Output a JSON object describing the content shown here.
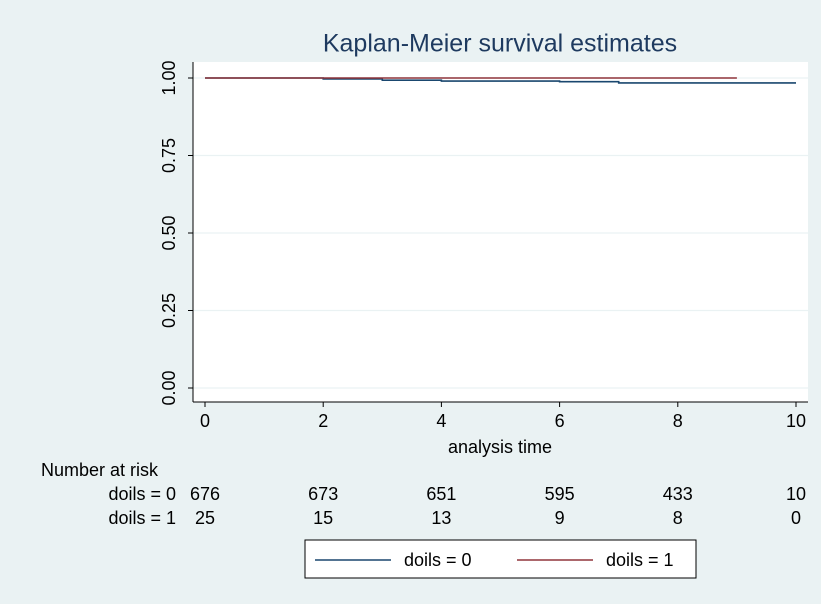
{
  "chart_data": {
    "type": "line",
    "step": true,
    "title": "Kaplan-Meier survival estimates",
    "x_label": "analysis time",
    "xlim": [
      0,
      10
    ],
    "xticks": [
      0,
      2,
      4,
      6,
      8,
      10
    ],
    "ylim": [
      0,
      1
    ],
    "yticks": [
      {
        "value": 0,
        "label": "0.00"
      },
      {
        "value": 0.25,
        "label": "0.25"
      },
      {
        "value": 0.5,
        "label": "0.50"
      },
      {
        "value": 0.75,
        "label": "0.75"
      },
      {
        "value": 1,
        "label": "1.00"
      }
    ],
    "grid": true,
    "series": [
      {
        "name": "doils = 0",
        "color": "#1a476f",
        "x": [
          0,
          2,
          3,
          4,
          6,
          7,
          10
        ],
        "values": [
          1,
          0.997,
          0.993,
          0.99,
          0.988,
          0.984,
          0.984
        ]
      },
      {
        "name": "doils = 1",
        "color": "#90353b",
        "x": [
          0,
          9
        ],
        "values": [
          1,
          1
        ]
      }
    ],
    "risk_table": {
      "title": "Number at risk",
      "rows": [
        {
          "label": "doils = 0",
          "values": [
            676,
            673,
            651,
            595,
            433,
            10
          ]
        },
        {
          "label": "doils = 1",
          "values": [
            25,
            15,
            13,
            9,
            8,
            0
          ]
        }
      ]
    },
    "legend": "bottom"
  }
}
